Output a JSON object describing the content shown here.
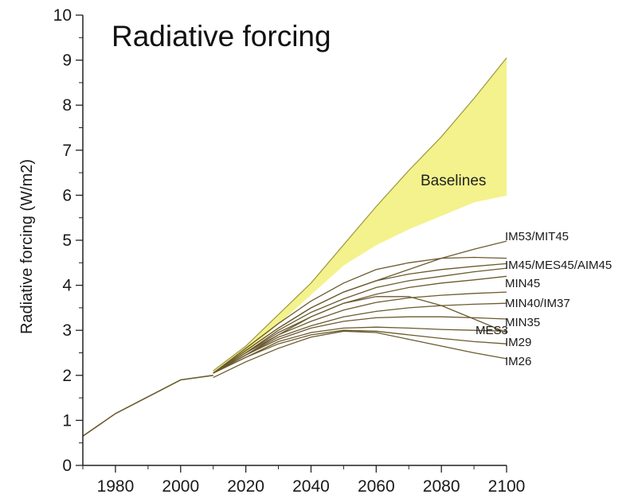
{
  "chart_data": {
    "type": "line",
    "title": "Radiative forcing",
    "ylabel": "Radiative forcing (W/m2)",
    "xlabel": "",
    "xlim": [
      1970,
      2100
    ],
    "ylim": [
      0,
      10
    ],
    "x_ticks": [
      "1980",
      "2000",
      "2020",
      "2040",
      "2060",
      "2080",
      "2100"
    ],
    "x_tick_values": [
      1980,
      2000,
      2020,
      2040,
      2060,
      2080,
      2100
    ],
    "y_ticks": [
      "0",
      "1",
      "2",
      "3",
      "4",
      "5",
      "6",
      "7",
      "8",
      "9",
      "10"
    ],
    "y_tick_values": [
      0,
      1,
      2,
      3,
      4,
      5,
      6,
      7,
      8,
      9,
      10
    ],
    "grid": false,
    "colors": {
      "band_fill": "#f4f28c",
      "band_edge": "#9a9a40",
      "line": "#6b5a2e",
      "axis": "#222222"
    },
    "history": {
      "x": [
        1970,
        1980,
        2000,
        2010
      ],
      "y": [
        0.65,
        1.15,
        1.9,
        2.0
      ]
    },
    "baseline_band": {
      "label": "Baselines",
      "x": [
        2010,
        2020,
        2030,
        2040,
        2050,
        2060,
        2070,
        2080,
        2090,
        2100
      ],
      "upper": [
        2.1,
        2.65,
        3.35,
        4.05,
        4.9,
        5.75,
        6.55,
        7.3,
        8.15,
        9.05
      ],
      "lower": [
        2.05,
        2.5,
        3.15,
        3.8,
        4.45,
        4.9,
        5.25,
        5.55,
        5.85,
        6.0
      ]
    },
    "series": [
      {
        "name": "IM53/MIT45",
        "x": [
          2010,
          2020,
          2030,
          2040,
          2050,
          2060,
          2070,
          2080,
          2090,
          2100
        ],
        "y": [
          2.05,
          2.55,
          3.05,
          3.5,
          3.85,
          4.1,
          4.35,
          4.6,
          4.8,
          4.98
        ]
      },
      {
        "name": "IM45/MES45/AIM45",
        "x": [
          2010,
          2020,
          2030,
          2040,
          2050,
          2060,
          2070,
          2080,
          2090,
          2100
        ],
        "y": [
          2.05,
          2.6,
          3.15,
          3.65,
          4.05,
          4.35,
          4.5,
          4.6,
          4.62,
          4.6
        ]
      },
      {
        "name": "",
        "x": [
          2010,
          2020,
          2030,
          2040,
          2050,
          2060,
          2070,
          2080,
          2090,
          2100
        ],
        "y": [
          2.05,
          2.55,
          3.05,
          3.5,
          3.85,
          4.1,
          4.25,
          4.35,
          4.42,
          4.48
        ]
      },
      {
        "name": "",
        "x": [
          2010,
          2020,
          2030,
          2040,
          2050,
          2060,
          2070,
          2080,
          2090,
          2100
        ],
        "y": [
          2.05,
          2.5,
          3.0,
          3.4,
          3.7,
          3.95,
          4.1,
          4.2,
          4.3,
          4.38
        ]
      },
      {
        "name": "MIN45",
        "x": [
          2010,
          2020,
          2030,
          2040,
          2050,
          2060,
          2070,
          2080,
          2090,
          2100
        ],
        "y": [
          2.05,
          2.5,
          2.95,
          3.3,
          3.6,
          3.8,
          3.95,
          4.05,
          4.12,
          4.2
        ]
      },
      {
        "name": "MIN40/IM37",
        "x": [
          2010,
          2020,
          2030,
          2040,
          2050,
          2060,
          2070,
          2080,
          2090,
          2100
        ],
        "y": [
          2.05,
          2.45,
          2.9,
          3.2,
          3.45,
          3.62,
          3.72,
          3.78,
          3.82,
          3.85
        ]
      },
      {
        "name": "",
        "x": [
          2010,
          2020,
          2030,
          2040,
          2050,
          2060,
          2070,
          2080,
          2090,
          2100
        ],
        "y": [
          2.05,
          2.45,
          2.85,
          3.1,
          3.3,
          3.42,
          3.5,
          3.55,
          3.58,
          3.6
        ]
      },
      {
        "name": "MIN35",
        "x": [
          2010,
          2020,
          2030,
          2040,
          2050,
          2060,
          2070,
          2080,
          2090,
          2100
        ],
        "y": [
          2.05,
          2.45,
          2.8,
          3.05,
          3.2,
          3.28,
          3.3,
          3.3,
          3.28,
          3.25
        ]
      },
      {
        "name": "MES3",
        "x": [
          2010,
          2020,
          2030,
          2040,
          2050,
          2060,
          2070,
          2080,
          2090,
          2100
        ],
        "y": [
          2.05,
          2.5,
          2.9,
          3.3,
          3.6,
          3.75,
          3.75,
          3.55,
          3.25,
          2.95
        ]
      },
      {
        "name": "",
        "x": [
          2010,
          2020,
          2030,
          2040,
          2050,
          2060,
          2070,
          2080,
          2090,
          2100
        ],
        "y": [
          2.05,
          2.4,
          2.75,
          2.95,
          3.05,
          3.07,
          3.05,
          3.02,
          3.0,
          2.98
        ]
      },
      {
        "name": "IM29",
        "x": [
          2010,
          2020,
          2030,
          2040,
          2050,
          2060,
          2070,
          2080,
          2090,
          2100
        ],
        "y": [
          2.05,
          2.4,
          2.7,
          2.9,
          3.0,
          2.98,
          2.9,
          2.82,
          2.75,
          2.7
        ]
      },
      {
        "name": "IM26",
        "x": [
          2010,
          2020,
          2030,
          2040,
          2050,
          2060,
          2070,
          2080,
          2090,
          2100
        ],
        "y": [
          1.95,
          2.3,
          2.6,
          2.85,
          2.98,
          2.95,
          2.8,
          2.65,
          2.5,
          2.37
        ]
      }
    ]
  }
}
